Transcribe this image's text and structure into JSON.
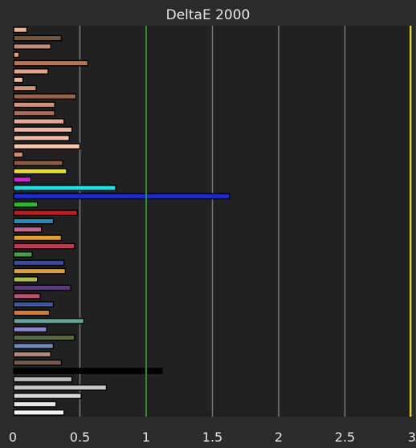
{
  "chart_data": {
    "type": "bar",
    "orientation": "horizontal",
    "title": "DeltaE 2000",
    "xlabel": "",
    "ylabel": "",
    "xlim": [
      0,
      3
    ],
    "x_ticks": [
      0,
      0.5,
      1,
      1.5,
      2,
      2.5,
      3
    ],
    "x_tick_labels": [
      "0",
      "0.5",
      "1",
      "1.5",
      "2",
      "2.5",
      "3"
    ],
    "grid": "vertical",
    "reference_lines": [
      {
        "value": 1,
        "color": "#2e8b2e"
      },
      {
        "value": 3,
        "color": "#e6d817"
      }
    ],
    "bars": [
      {
        "value": 0.1,
        "color": "#e6b48f"
      },
      {
        "value": 0.36,
        "color": "#7a5335"
      },
      {
        "value": 0.28,
        "color": "#c48a72"
      },
      {
        "value": 0.04,
        "color": "#e39b7b"
      },
      {
        "value": 0.56,
        "color": "#b57453"
      },
      {
        "value": 0.26,
        "color": "#e3a483"
      },
      {
        "value": 0.07,
        "color": "#f2b794"
      },
      {
        "value": 0.17,
        "color": "#d39373"
      },
      {
        "value": 0.47,
        "color": "#9c6244"
      },
      {
        "value": 0.31,
        "color": "#d09478"
      },
      {
        "value": 0.31,
        "color": "#a77057"
      },
      {
        "value": 0.38,
        "color": "#e9aa8b"
      },
      {
        "value": 0.44,
        "color": "#f0b194"
      },
      {
        "value": 0.42,
        "color": "#f5bca0"
      },
      {
        "value": 0.5,
        "color": "#f8c8ae"
      },
      {
        "value": 0.07,
        "color": "#d08a6e"
      },
      {
        "value": 0.37,
        "color": "#8e5a42"
      },
      {
        "value": 0.4,
        "color": "#e5e01a"
      },
      {
        "value": 0.13,
        "color": "#e01ae0"
      },
      {
        "value": 0.77,
        "color": "#1adfe3"
      },
      {
        "value": 1.63,
        "color": "#1a2bc9"
      },
      {
        "value": 0.18,
        "color": "#1fbf2a"
      },
      {
        "value": 0.48,
        "color": "#c41b1b"
      },
      {
        "value": 0.3,
        "color": "#1b8fb8"
      },
      {
        "value": 0.21,
        "color": "#c4688f"
      },
      {
        "value": 0.36,
        "color": "#e6a020"
      },
      {
        "value": 0.46,
        "color": "#c23a52"
      },
      {
        "value": 0.14,
        "color": "#49a04a"
      },
      {
        "value": 0.38,
        "color": "#3a4aa8"
      },
      {
        "value": 0.39,
        "color": "#e0a030"
      },
      {
        "value": 0.18,
        "color": "#a8c03a"
      },
      {
        "value": 0.43,
        "color": "#5a3a7a"
      },
      {
        "value": 0.2,
        "color": "#c0506a"
      },
      {
        "value": 0.3,
        "color": "#3a5aa0"
      },
      {
        "value": 0.27,
        "color": "#e0782a"
      },
      {
        "value": 0.53,
        "color": "#5aa898"
      },
      {
        "value": 0.25,
        "color": "#8a88c8"
      },
      {
        "value": 0.46,
        "color": "#5a6a3a"
      },
      {
        "value": 0.3,
        "color": "#6a8ac0"
      },
      {
        "value": 0.28,
        "color": "#b88878"
      },
      {
        "value": 0.36,
        "color": "#7a5a4a"
      },
      {
        "value": 1.12,
        "color": "#000000"
      },
      {
        "value": 0.44,
        "color": "#b8b8b8"
      },
      {
        "value": 0.7,
        "color": "#c8c8c8"
      },
      {
        "value": 0.51,
        "color": "#d8d8d8"
      },
      {
        "value": 0.32,
        "color": "#e6e6e6"
      },
      {
        "value": 0.38,
        "color": "#f4f4f4"
      }
    ]
  },
  "colors": {
    "background": "#2b2b2b",
    "plot_background": "#212121",
    "grid": "#7a7a7a",
    "text": "#e6e6e6",
    "bar_stroke": "#000000"
  }
}
